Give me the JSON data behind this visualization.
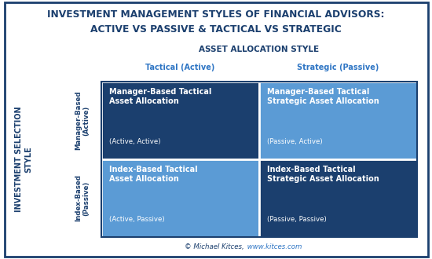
{
  "title_line1": "INVESTMENT MANAGEMENT STYLES OF FINANCIAL ADVISORS:",
  "title_line2": "ACTIVE VS PASSIVE & TACTICAL VS STRATEGIC",
  "col_header_label": "ASSET ALLOCATION STYLE",
  "col1_label": "Tactical (Active)",
  "col2_label": "Strategic (Passive)",
  "row_header_label": "INVESTMENT SELECTION\nSTYLE",
  "row1_label": "Manager-Based\n(Active)",
  "row2_label": "Index-Based\n(Passive)",
  "cells": [
    {
      "title": "Manager-Based Tactical\nAsset Allocation",
      "subtitle": "(Active, Active)",
      "color": "#1b3f6e",
      "row": 0,
      "col": 0
    },
    {
      "title": "Manager-Based Tactical\nStrategic Asset Allocation",
      "subtitle": "(Passive, Active)",
      "color": "#5b9bd5",
      "row": 0,
      "col": 1
    },
    {
      "title": "Index-Based Tactical\nAsset Allocation",
      "subtitle": "(Active, Passive)",
      "color": "#5b9bd5",
      "row": 1,
      "col": 0
    },
    {
      "title": "Index-Based Tactical\nStrategic Asset Allocation",
      "subtitle": "(Passive, Passive)",
      "color": "#1b3f6e",
      "row": 1,
      "col": 1
    }
  ],
  "title_color": "#1b3f6e",
  "col_header_color": "#1b3f6e",
  "col1_label_color": "#2e75c4",
  "col2_label_color": "#2e75c4",
  "row_label_color": "#1b3f6e",
  "background_color": "#ffffff",
  "border_color": "#1b3f6e",
  "footer_text": "© Michael Kitces,",
  "footer_url": " www.kitces.com",
  "footer_color": "#1b3f6e",
  "footer_url_color": "#2e75c4",
  "cell_text_color": "#ffffff",
  "outer_border_color": "#1b3f6e"
}
